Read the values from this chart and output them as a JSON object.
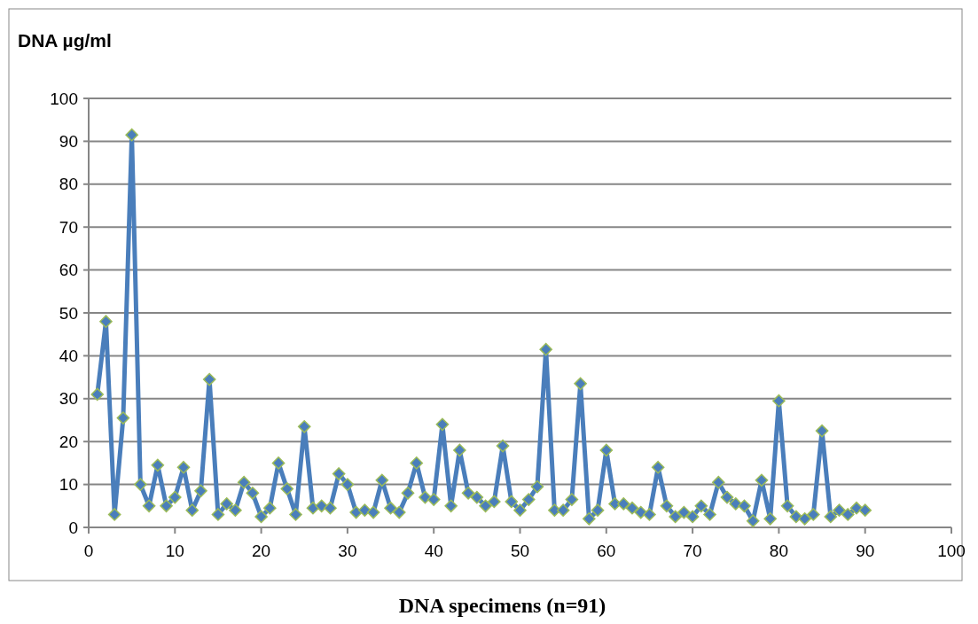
{
  "chart_data": {
    "type": "line",
    "ylabel": "DNA µg/ml",
    "xlabel": "DNA specimens (n=91)",
    "x": [
      1,
      2,
      3,
      4,
      5,
      6,
      7,
      8,
      9,
      10,
      11,
      12,
      13,
      14,
      15,
      16,
      17,
      18,
      19,
      20,
      21,
      22,
      23,
      24,
      25,
      26,
      27,
      28,
      29,
      30,
      31,
      32,
      33,
      34,
      35,
      36,
      37,
      38,
      39,
      40,
      41,
      42,
      43,
      44,
      45,
      46,
      47,
      48,
      49,
      50,
      51,
      52,
      53,
      54,
      55,
      56,
      57,
      58,
      59,
      60,
      61,
      62,
      63,
      64,
      65,
      66,
      67,
      68,
      69,
      70,
      71,
      72,
      73,
      74,
      75,
      76,
      77,
      78,
      79,
      80,
      81,
      82,
      83,
      84,
      85,
      86,
      87,
      88,
      89,
      90
    ],
    "series": [
      {
        "color": "#4a7ebb",
        "values": [
          31,
          48,
          3,
          25.5,
          91.5,
          10,
          5,
          14.5,
          5,
          7,
          14,
          4,
          8.5,
          34.5,
          3,
          5.5,
          4,
          10.5,
          8,
          2.5,
          4.5,
          15,
          9,
          3,
          23.5,
          4.5,
          5,
          4.5,
          12.5,
          10,
          3.5,
          4,
          3.5,
          11,
          4.5,
          3.5,
          8,
          15,
          7,
          6.5,
          24,
          5,
          18,
          8,
          7,
          5,
          6,
          19,
          6,
          4,
          6.5,
          9.5,
          41.5,
          4,
          4,
          6.5,
          33.5,
          2,
          4,
          18,
          5.5,
          5.5,
          4.5,
          3.5,
          3,
          14,
          5,
          2.5,
          3.5,
          2.5,
          5,
          3,
          10.5,
          7,
          5.5,
          5,
          1.5,
          11,
          2,
          29.5,
          5,
          2.5,
          2,
          3,
          22.5,
          2.5,
          4,
          3,
          4.5,
          4
        ]
      }
    ],
    "xlim": [
      0,
      100
    ],
    "xticks": [
      0,
      10,
      20,
      30,
      40,
      50,
      60,
      70,
      80,
      90,
      100
    ],
    "ylim": [
      0,
      100
    ],
    "yticks": [
      0,
      10,
      20,
      30,
      40,
      50,
      60,
      70,
      80,
      90,
      100
    ],
    "grid": "y",
    "marker": "diamond",
    "line_style": "solid"
  }
}
